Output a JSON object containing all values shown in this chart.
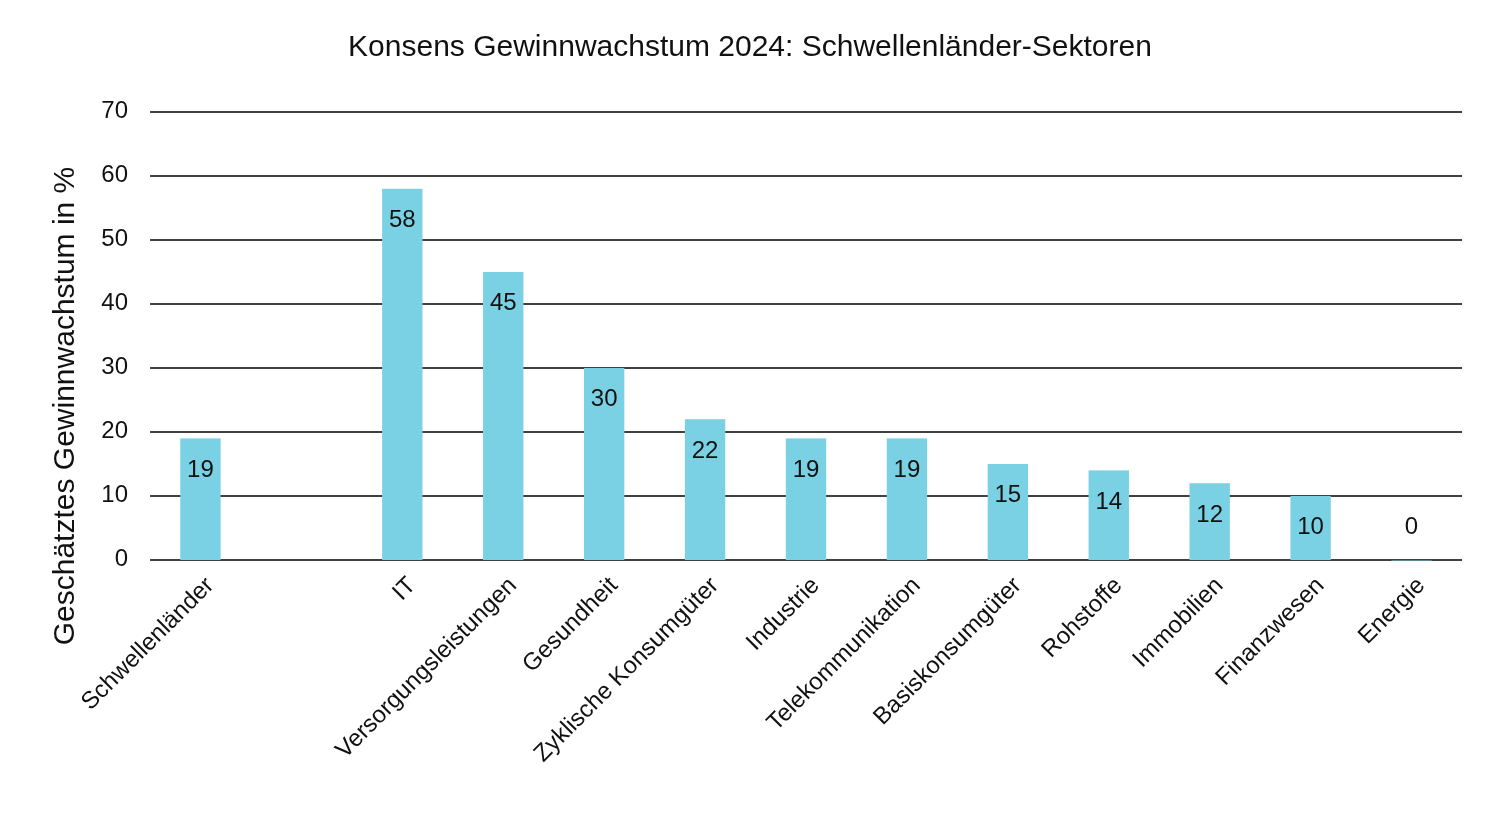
{
  "chart_data": {
    "type": "bar",
    "title": "Konsens Gewinnwachstum 2024: Schwellenländer-Sektoren",
    "ylabel": "Geschätztes Gewinnwachstum in %",
    "categories": [
      "Schwellenländer",
      null,
      "IT",
      "Versorgungsleistungen",
      "Gesundheit",
      "Zyklische Konsumgüter",
      "Industrie",
      "Telekommunikation",
      "Basiskonsumgüter",
      "Rohstoffe",
      "Immobilien",
      "Finanzwesen",
      "Energie"
    ],
    "values": [
      19,
      null,
      58,
      45,
      30,
      22,
      19,
      19,
      15,
      14,
      12,
      10,
      0
    ],
    "color": "#7ad1e3",
    "ylim": [
      0,
      70
    ],
    "yticks": [
      0,
      10,
      20,
      30,
      40,
      50,
      60,
      70
    ],
    "grid": "y",
    "data_labels": true
  }
}
